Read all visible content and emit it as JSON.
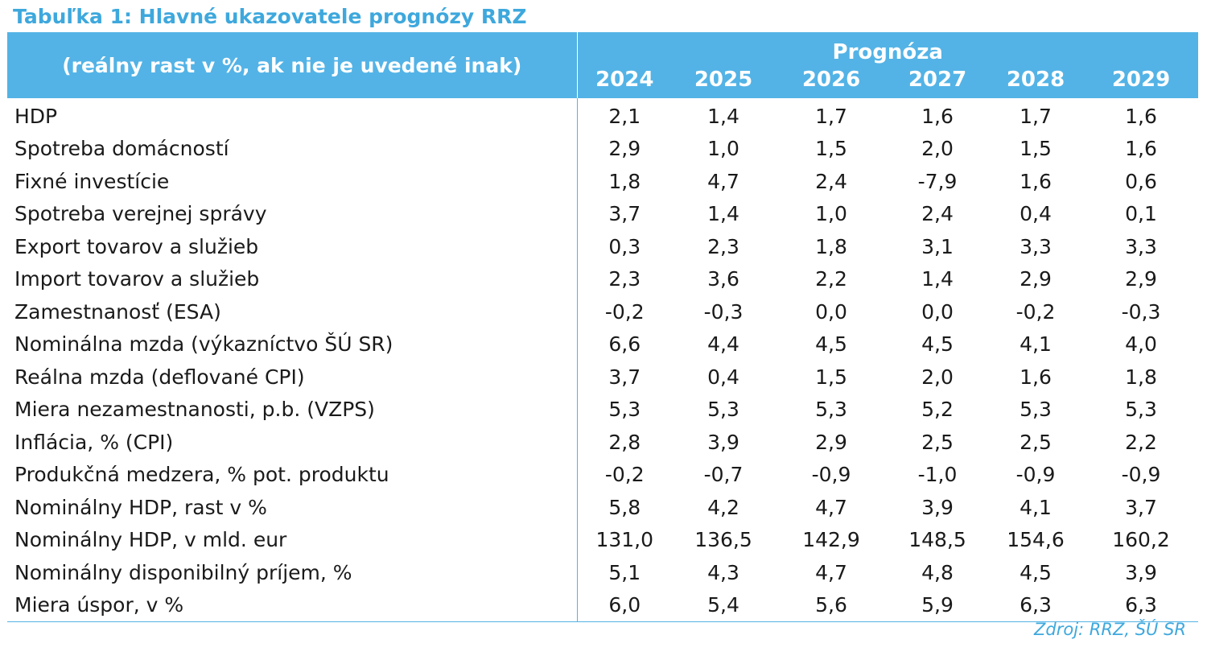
{
  "title": "Tabuľka 1: Hlavné ukazovatele prognózy RRZ",
  "header": {
    "label": "(reálny rast v %, ak nie je uvedené inak)",
    "prognoza": "Prognóza",
    "years": [
      "2024",
      "2025",
      "2026",
      "2027",
      "2028",
      "2029"
    ]
  },
  "rows": [
    {
      "label": "HDP",
      "values": [
        "2,1",
        "1,4",
        "1,7",
        "1,6",
        "1,7",
        "1,6"
      ]
    },
    {
      "label": "Spotreba domácností",
      "values": [
        "2,9",
        "1,0",
        "1,5",
        "2,0",
        "1,5",
        "1,6"
      ]
    },
    {
      "label": "Fixné investície",
      "values": [
        "1,8",
        "4,7",
        "2,4",
        "-7,9",
        "1,6",
        "0,6"
      ]
    },
    {
      "label": "Spotreba verejnej správy",
      "values": [
        "3,7",
        "1,4",
        "1,0",
        "2,4",
        "0,4",
        "0,1"
      ]
    },
    {
      "label": "Export tovarov a služieb",
      "values": [
        "0,3",
        "2,3",
        "1,8",
        "3,1",
        "3,3",
        "3,3"
      ]
    },
    {
      "label": "Import tovarov a služieb",
      "values": [
        "2,3",
        "3,6",
        "2,2",
        "1,4",
        "2,9",
        "2,9"
      ]
    },
    {
      "label": "Zamestnanosť (ESA)",
      "values": [
        "-0,2",
        "-0,3",
        "0,0",
        "0,0",
        "-0,2",
        "-0,3"
      ]
    },
    {
      "label": "Nominálna mzda (výkazníctvo ŠÚ SR)",
      "values": [
        "6,6",
        "4,4",
        "4,5",
        "4,5",
        "4,1",
        "4,0"
      ]
    },
    {
      "label": "Reálna mzda (deflované CPI)",
      "values": [
        "3,7",
        "0,4",
        "1,5",
        "2,0",
        "1,6",
        "1,8"
      ]
    },
    {
      "label": "Miera nezamestnanosti, p.b. (VZPS)",
      "values": [
        "5,3",
        "5,3",
        "5,3",
        "5,2",
        "5,3",
        "5,3"
      ]
    },
    {
      "label": "Inflácia, % (CPI)",
      "values": [
        "2,8",
        "3,9",
        "2,9",
        "2,5",
        "2,5",
        "2,2"
      ]
    },
    {
      "label": "Produkčná medzera, % pot. produktu",
      "values": [
        "-0,2",
        "-0,7",
        "-0,9",
        "-1,0",
        "-0,9",
        "-0,9"
      ]
    },
    {
      "label": "Nominálny HDP, rast v %",
      "values": [
        "5,8",
        "4,2",
        "4,7",
        "3,9",
        "4,1",
        "3,7"
      ]
    },
    {
      "label": "Nominálny HDP, v mld. eur",
      "values": [
        "131,0",
        "136,5",
        "142,9",
        "148,5",
        "154,6",
        "160,2"
      ]
    },
    {
      "label": "Nominálny disponibilný príjem, %",
      "values": [
        "5,1",
        "4,3",
        "4,7",
        "4,8",
        "4,5",
        "3,9"
      ]
    },
    {
      "label": "Miera úspor, v %",
      "values": [
        "6,0",
        "5,4",
        "5,6",
        "5,9",
        "6,3",
        "6,3"
      ]
    }
  ],
  "source": "Zdroj: RRZ, ŠÚ SR",
  "colors": {
    "accent": "#53b3e6",
    "title": "#3ea8dd",
    "header_text": "#ffffff",
    "body_text": "#1a1a1a"
  }
}
